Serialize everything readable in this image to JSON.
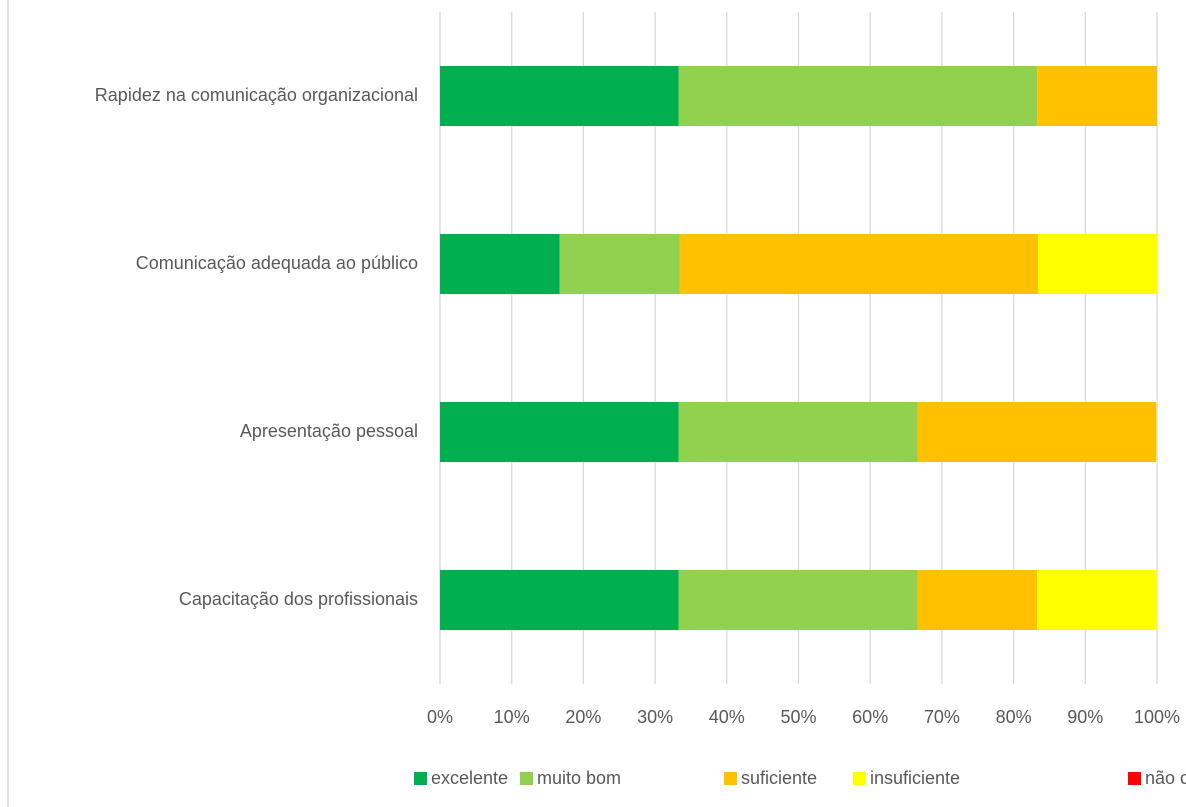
{
  "chart_data": {
    "type": "stacked-bar-horizontal",
    "categories": [
      "Rapidez na comunicação organizacional",
      "Comunicação adequada ao público",
      "Apresentação pessoal",
      "Capacitação dos profissionais"
    ],
    "series": [
      {
        "name": "excelente",
        "color": "#00b050",
        "values": [
          33.3,
          16.7,
          33.3,
          33.3
        ]
      },
      {
        "name": "muito bom",
        "color": "#92d050",
        "values": [
          50,
          16.7,
          33.3,
          33.3
        ]
      },
      {
        "name": "suficiente",
        "color": "#ffc000",
        "values": [
          16.7,
          50,
          33.3,
          16.7
        ]
      },
      {
        "name": "insuficiente",
        "color": "#ffff00",
        "values": [
          0,
          16.7,
          0,
          16.7
        ]
      },
      {
        "name": "não conheço",
        "color": "#ff0000",
        "values": [
          0,
          0,
          0,
          0
        ]
      }
    ],
    "xlim": [
      0,
      100
    ],
    "xticks": [
      {
        "value": 0,
        "label": "0%"
      },
      {
        "value": 10,
        "label": "10%"
      },
      {
        "value": 20,
        "label": "20%"
      },
      {
        "value": 30,
        "label": "30%"
      },
      {
        "value": 40,
        "label": "40%"
      },
      {
        "value": 50,
        "label": "50%"
      },
      {
        "value": 60,
        "label": "60%"
      },
      {
        "value": 70,
        "label": "70%"
      },
      {
        "value": 80,
        "label": "80%"
      },
      {
        "value": 90,
        "label": "90%"
      },
      {
        "value": 100,
        "label": "100%"
      }
    ],
    "grid": true,
    "legend": "bottom"
  }
}
